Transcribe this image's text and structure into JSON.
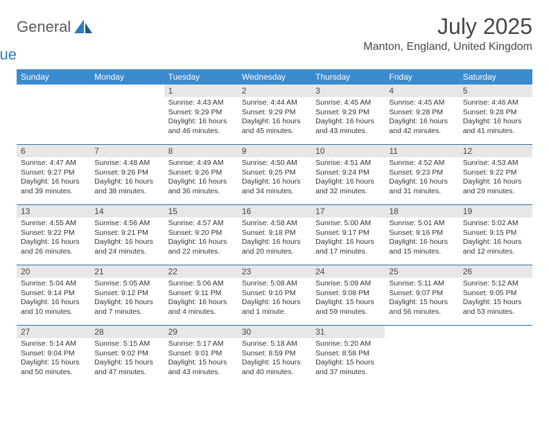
{
  "brand": {
    "word1": "General",
    "word2": "Blue",
    "color1": "#5a5a5a",
    "color2": "#2d7dc4"
  },
  "title": "July 2025",
  "location": "Manton, England, United Kingdom",
  "colors": {
    "header_bg": "#3b8bcf",
    "header_text": "#ffffff",
    "daynum_bg": "#e7e7e7",
    "row_border": "#2f6fa8",
    "text": "#333333"
  },
  "day_names": [
    "Sunday",
    "Monday",
    "Tuesday",
    "Wednesday",
    "Thursday",
    "Friday",
    "Saturday"
  ],
  "weeks": [
    [
      {
        "n": "",
        "sr": "",
        "ss": "",
        "dl": ""
      },
      {
        "n": "",
        "sr": "",
        "ss": "",
        "dl": ""
      },
      {
        "n": "1",
        "sr": "Sunrise: 4:43 AM",
        "ss": "Sunset: 9:29 PM",
        "dl": "Daylight: 16 hours and 46 minutes."
      },
      {
        "n": "2",
        "sr": "Sunrise: 4:44 AM",
        "ss": "Sunset: 9:29 PM",
        "dl": "Daylight: 16 hours and 45 minutes."
      },
      {
        "n": "3",
        "sr": "Sunrise: 4:45 AM",
        "ss": "Sunset: 9:29 PM",
        "dl": "Daylight: 16 hours and 43 minutes."
      },
      {
        "n": "4",
        "sr": "Sunrise: 4:45 AM",
        "ss": "Sunset: 9:28 PM",
        "dl": "Daylight: 16 hours and 42 minutes."
      },
      {
        "n": "5",
        "sr": "Sunrise: 4:46 AM",
        "ss": "Sunset: 9:28 PM",
        "dl": "Daylight: 16 hours and 41 minutes."
      }
    ],
    [
      {
        "n": "6",
        "sr": "Sunrise: 4:47 AM",
        "ss": "Sunset: 9:27 PM",
        "dl": "Daylight: 16 hours and 39 minutes."
      },
      {
        "n": "7",
        "sr": "Sunrise: 4:48 AM",
        "ss": "Sunset: 9:26 PM",
        "dl": "Daylight: 16 hours and 38 minutes."
      },
      {
        "n": "8",
        "sr": "Sunrise: 4:49 AM",
        "ss": "Sunset: 9:26 PM",
        "dl": "Daylight: 16 hours and 36 minutes."
      },
      {
        "n": "9",
        "sr": "Sunrise: 4:50 AM",
        "ss": "Sunset: 9:25 PM",
        "dl": "Daylight: 16 hours and 34 minutes."
      },
      {
        "n": "10",
        "sr": "Sunrise: 4:51 AM",
        "ss": "Sunset: 9:24 PM",
        "dl": "Daylight: 16 hours and 32 minutes."
      },
      {
        "n": "11",
        "sr": "Sunrise: 4:52 AM",
        "ss": "Sunset: 9:23 PM",
        "dl": "Daylight: 16 hours and 31 minutes."
      },
      {
        "n": "12",
        "sr": "Sunrise: 4:53 AM",
        "ss": "Sunset: 9:22 PM",
        "dl": "Daylight: 16 hours and 29 minutes."
      }
    ],
    [
      {
        "n": "13",
        "sr": "Sunrise: 4:55 AM",
        "ss": "Sunset: 9:22 PM",
        "dl": "Daylight: 16 hours and 26 minutes."
      },
      {
        "n": "14",
        "sr": "Sunrise: 4:56 AM",
        "ss": "Sunset: 9:21 PM",
        "dl": "Daylight: 16 hours and 24 minutes."
      },
      {
        "n": "15",
        "sr": "Sunrise: 4:57 AM",
        "ss": "Sunset: 9:20 PM",
        "dl": "Daylight: 16 hours and 22 minutes."
      },
      {
        "n": "16",
        "sr": "Sunrise: 4:58 AM",
        "ss": "Sunset: 9:18 PM",
        "dl": "Daylight: 16 hours and 20 minutes."
      },
      {
        "n": "17",
        "sr": "Sunrise: 5:00 AM",
        "ss": "Sunset: 9:17 PM",
        "dl": "Daylight: 16 hours and 17 minutes."
      },
      {
        "n": "18",
        "sr": "Sunrise: 5:01 AM",
        "ss": "Sunset: 9:16 PM",
        "dl": "Daylight: 16 hours and 15 minutes."
      },
      {
        "n": "19",
        "sr": "Sunrise: 5:02 AM",
        "ss": "Sunset: 9:15 PM",
        "dl": "Daylight: 16 hours and 12 minutes."
      }
    ],
    [
      {
        "n": "20",
        "sr": "Sunrise: 5:04 AM",
        "ss": "Sunset: 9:14 PM",
        "dl": "Daylight: 16 hours and 10 minutes."
      },
      {
        "n": "21",
        "sr": "Sunrise: 5:05 AM",
        "ss": "Sunset: 9:12 PM",
        "dl": "Daylight: 16 hours and 7 minutes."
      },
      {
        "n": "22",
        "sr": "Sunrise: 5:06 AM",
        "ss": "Sunset: 9:11 PM",
        "dl": "Daylight: 16 hours and 4 minutes."
      },
      {
        "n": "23",
        "sr": "Sunrise: 5:08 AM",
        "ss": "Sunset: 9:10 PM",
        "dl": "Daylight: 16 hours and 1 minute."
      },
      {
        "n": "24",
        "sr": "Sunrise: 5:09 AM",
        "ss": "Sunset: 9:08 PM",
        "dl": "Daylight: 15 hours and 59 minutes."
      },
      {
        "n": "25",
        "sr": "Sunrise: 5:11 AM",
        "ss": "Sunset: 9:07 PM",
        "dl": "Daylight: 15 hours and 56 minutes."
      },
      {
        "n": "26",
        "sr": "Sunrise: 5:12 AM",
        "ss": "Sunset: 9:05 PM",
        "dl": "Daylight: 15 hours and 53 minutes."
      }
    ],
    [
      {
        "n": "27",
        "sr": "Sunrise: 5:14 AM",
        "ss": "Sunset: 9:04 PM",
        "dl": "Daylight: 15 hours and 50 minutes."
      },
      {
        "n": "28",
        "sr": "Sunrise: 5:15 AM",
        "ss": "Sunset: 9:02 PM",
        "dl": "Daylight: 15 hours and 47 minutes."
      },
      {
        "n": "29",
        "sr": "Sunrise: 5:17 AM",
        "ss": "Sunset: 9:01 PM",
        "dl": "Daylight: 15 hours and 43 minutes."
      },
      {
        "n": "30",
        "sr": "Sunrise: 5:18 AM",
        "ss": "Sunset: 8:59 PM",
        "dl": "Daylight: 15 hours and 40 minutes."
      },
      {
        "n": "31",
        "sr": "Sunrise: 5:20 AM",
        "ss": "Sunset: 8:58 PM",
        "dl": "Daylight: 15 hours and 37 minutes."
      },
      {
        "n": "",
        "sr": "",
        "ss": "",
        "dl": ""
      },
      {
        "n": "",
        "sr": "",
        "ss": "",
        "dl": ""
      }
    ]
  ]
}
